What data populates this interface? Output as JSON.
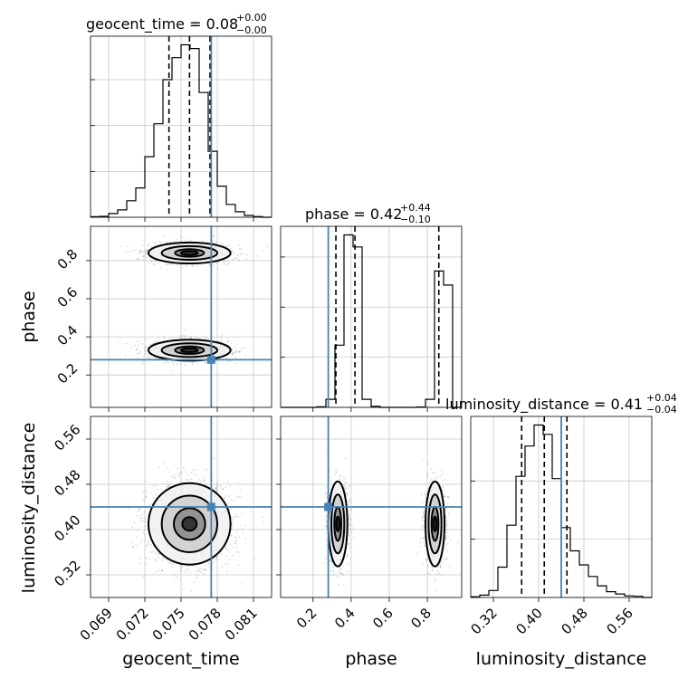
{
  "chart_data": {
    "type": "corner",
    "parameters": [
      {
        "name": "geocent_time",
        "range": [
          0.0675,
          0.0825
        ],
        "ticks": [
          "0.069",
          "0.072",
          "0.075",
          "0.078",
          "0.081"
        ],
        "tick_values": [
          0.069,
          0.072,
          0.075,
          0.078,
          0.081
        ],
        "truth": 0.0775,
        "median": 0.0757,
        "quantiles": [
          0.074,
          0.0757,
          0.0774
        ]
      },
      {
        "name": "phase",
        "range": [
          0.03,
          0.98
        ],
        "ticks": [
          "0.2",
          "0.4",
          "0.6",
          "0.8"
        ],
        "tick_values": [
          0.2,
          0.4,
          0.6,
          0.8
        ],
        "truth": 0.28,
        "median": 0.42,
        "quantiles": [
          0.32,
          0.42,
          0.86
        ]
      },
      {
        "name": "luminosity_distance",
        "range": [
          0.28,
          0.6
        ],
        "ticks": [
          "0.32",
          "0.40",
          "0.48",
          "0.56"
        ],
        "tick_values": [
          0.32,
          0.4,
          0.48,
          0.56
        ],
        "truth": 0.44,
        "median": 0.41,
        "quantiles": [
          0.37,
          0.41,
          0.45
        ]
      }
    ],
    "titles": [
      {
        "main": "geocent_time = 0.08",
        "sup": "+0.00",
        "sub": "−0.00"
      },
      {
        "main": "phase = 0.42",
        "sup": "+0.44",
        "sub": "−0.10"
      },
      {
        "main": "luminosity_distance = 0.41",
        "sup": "+0.04",
        "sub": "−0.04"
      }
    ],
    "hist_geocent_time": {
      "edges_start": 0.0675,
      "bin_width": 0.00075,
      "counts": [
        0.3,
        0.5,
        2,
        4,
        9,
        16,
        33,
        51,
        75,
        87,
        94,
        92,
        68,
        36,
        17,
        7,
        3,
        1,
        0.4,
        0
      ]
    },
    "hist_phase": {
      "edges_start": 0.03,
      "bin_width": 0.0475,
      "counts": [
        0,
        0,
        0,
        0,
        0.3,
        4,
        31,
        86,
        80,
        4,
        0.5,
        0,
        0,
        0,
        0,
        0.2,
        4,
        68,
        61,
        0
      ]
    },
    "hist_luminosity_distance": {
      "edges_start": 0.28,
      "bin_width": 0.016,
      "counts": [
        0.3,
        1,
        3,
        13,
        31,
        52,
        65,
        74,
        70,
        51,
        30,
        20,
        14,
        9,
        5,
        2.5,
        1.5,
        0.7,
        0.5,
        0
      ]
    },
    "grid": true,
    "colors": {
      "truth": "#4682b4",
      "hist": "#000000",
      "scatter": "#999999",
      "grid": "#c8c8c8"
    }
  }
}
